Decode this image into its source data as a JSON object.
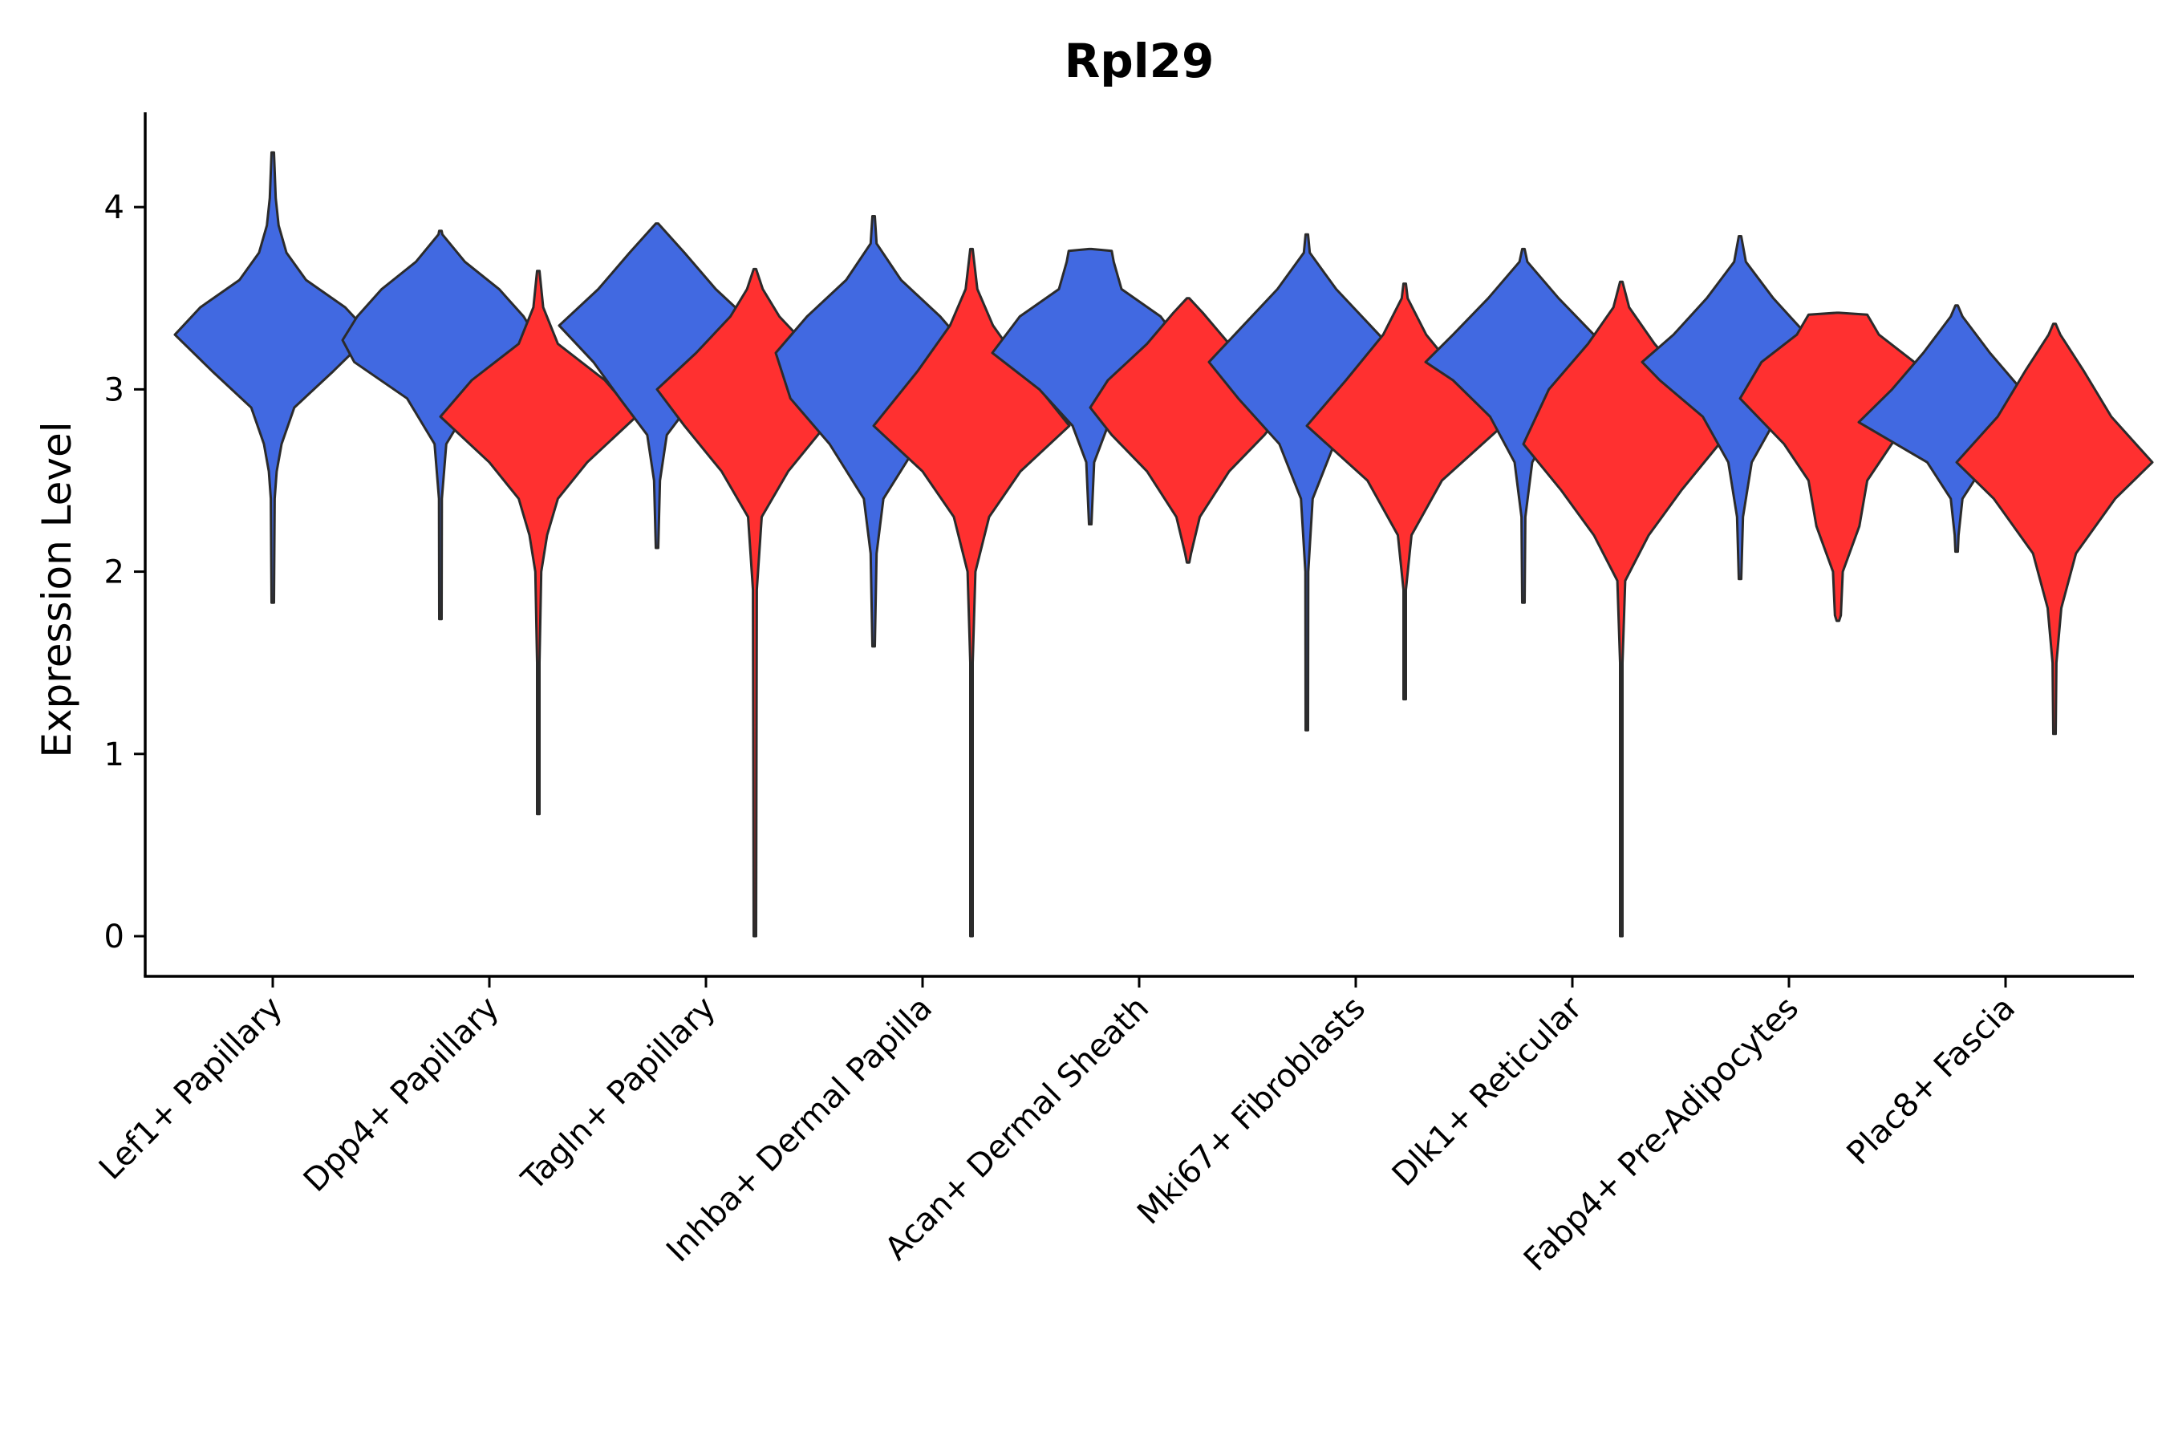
{
  "chart_data": {
    "type": "violin",
    "title": "Rpl29",
    "xlabel": "",
    "ylabel": "Expression Level",
    "ylim": [
      -0.22,
      4.52
    ],
    "yticks": [
      0,
      1,
      2,
      3,
      4
    ],
    "legend": "none",
    "grid": false,
    "colors": {
      "blue": "#4169E1",
      "red": "#FF3030",
      "outline": "#2b2b2b"
    },
    "categories": [
      "Lef1+ Papillary",
      "Dpp4+ Papillary",
      "Tagln+ Papillary",
      "Inhba+ Dermal Papilla",
      "Acan+ Dermal Sheath",
      "Mki67+ Fibroblasts",
      "Dlk1+ Reticular",
      "Fabp4+ Pre-Adipocytes",
      "Plac8+ Fascia"
    ],
    "violins": [
      {
        "category": "Lef1+ Papillary",
        "group": "blue",
        "min": 1.83,
        "max": 4.3,
        "profile": [
          [
            1.83,
            0.0
          ],
          [
            2.4,
            0.02
          ],
          [
            2.55,
            0.04
          ],
          [
            2.7,
            0.09
          ],
          [
            2.9,
            0.22
          ],
          [
            3.1,
            0.62
          ],
          [
            3.3,
            1.0
          ],
          [
            3.45,
            0.74
          ],
          [
            3.6,
            0.34
          ],
          [
            3.75,
            0.14
          ],
          [
            3.9,
            0.06
          ],
          [
            4.05,
            0.03
          ],
          [
            4.3,
            0.0
          ]
        ]
      },
      {
        "category": "Dpp4+ Papillary",
        "group": "blue",
        "min": 1.74,
        "max": 3.87,
        "profile": [
          [
            1.74,
            0.0
          ],
          [
            2.4,
            0.015
          ],
          [
            2.7,
            0.06
          ],
          [
            2.95,
            0.34
          ],
          [
            3.15,
            0.88
          ],
          [
            3.27,
            1.0
          ],
          [
            3.4,
            0.85
          ],
          [
            3.55,
            0.6
          ],
          [
            3.7,
            0.25
          ],
          [
            3.85,
            0.02
          ],
          [
            3.87,
            0.0
          ]
        ]
      },
      {
        "category": "Dpp4+ Papillary",
        "group": "red",
        "min": 0.67,
        "max": 3.65,
        "profile": [
          [
            0.67,
            0.0
          ],
          [
            1.5,
            0.005
          ],
          [
            2.0,
            0.03
          ],
          [
            2.2,
            0.09
          ],
          [
            2.4,
            0.2
          ],
          [
            2.6,
            0.5
          ],
          [
            2.85,
            1.0
          ],
          [
            3.05,
            0.68
          ],
          [
            3.25,
            0.2
          ],
          [
            3.45,
            0.05
          ],
          [
            3.65,
            0.0
          ]
        ]
      },
      {
        "category": "Tagln+ Papillary",
        "group": "blue",
        "min": 2.13,
        "max": 3.91,
        "profile": [
          [
            2.13,
            0.0
          ],
          [
            2.5,
            0.03
          ],
          [
            2.75,
            0.1
          ],
          [
            2.95,
            0.38
          ],
          [
            3.15,
            0.65
          ],
          [
            3.35,
            1.0
          ],
          [
            3.55,
            0.6
          ],
          [
            3.75,
            0.28
          ],
          [
            3.91,
            0.0
          ]
        ]
      },
      {
        "category": "Tagln+ Papillary",
        "group": "red",
        "min": 0.0,
        "max": 3.66,
        "profile": [
          [
            0.0,
            0.0
          ],
          [
            1.9,
            0.02
          ],
          [
            2.3,
            0.07
          ],
          [
            2.55,
            0.34
          ],
          [
            2.8,
            0.72
          ],
          [
            3.0,
            1.0
          ],
          [
            3.2,
            0.6
          ],
          [
            3.4,
            0.25
          ],
          [
            3.55,
            0.08
          ],
          [
            3.66,
            0.0
          ]
        ]
      },
      {
        "category": "Inhba+ Dermal Papilla",
        "group": "blue",
        "min": 1.59,
        "max": 3.95,
        "profile": [
          [
            1.59,
            0.0
          ],
          [
            2.1,
            0.03
          ],
          [
            2.4,
            0.1
          ],
          [
            2.7,
            0.45
          ],
          [
            2.95,
            0.85
          ],
          [
            3.2,
            1.0
          ],
          [
            3.4,
            0.68
          ],
          [
            3.6,
            0.28
          ],
          [
            3.8,
            0.03
          ],
          [
            3.95,
            0.0
          ]
        ]
      },
      {
        "category": "Inhba+ Dermal Papilla",
        "group": "red",
        "min": 0.0,
        "max": 3.77,
        "profile": [
          [
            0.0,
            0.0
          ],
          [
            1.5,
            0.005
          ],
          [
            2.0,
            0.04
          ],
          [
            2.3,
            0.18
          ],
          [
            2.55,
            0.5
          ],
          [
            2.8,
            1.0
          ],
          [
            3.1,
            0.55
          ],
          [
            3.35,
            0.22
          ],
          [
            3.55,
            0.06
          ],
          [
            3.77,
            0.0
          ]
        ]
      },
      {
        "category": "Acan+ Dermal Sheath",
        "group": "blue",
        "min": 2.26,
        "max": 3.77,
        "profile": [
          [
            2.26,
            0.0
          ],
          [
            2.6,
            0.04
          ],
          [
            2.8,
            0.18
          ],
          [
            3.0,
            0.52
          ],
          [
            3.2,
            1.0
          ],
          [
            3.4,
            0.72
          ],
          [
            3.55,
            0.32
          ],
          [
            3.7,
            0.24
          ],
          [
            3.76,
            0.22
          ],
          [
            3.77,
            0.0
          ]
        ]
      },
      {
        "category": "Acan+ Dermal Sheath",
        "group": "red",
        "min": 2.05,
        "max": 3.5,
        "profile": [
          [
            2.05,
            0.0
          ],
          [
            2.1,
            0.03
          ],
          [
            2.3,
            0.12
          ],
          [
            2.55,
            0.42
          ],
          [
            2.75,
            0.78
          ],
          [
            2.9,
            1.0
          ],
          [
            3.05,
            0.82
          ],
          [
            3.25,
            0.42
          ],
          [
            3.42,
            0.15
          ],
          [
            3.5,
            0.0
          ]
        ]
      },
      {
        "category": "Mki67+ Fibroblasts",
        "group": "blue",
        "min": 1.13,
        "max": 3.85,
        "profile": [
          [
            1.13,
            0.0
          ],
          [
            2.0,
            0.015
          ],
          [
            2.4,
            0.06
          ],
          [
            2.7,
            0.28
          ],
          [
            2.95,
            0.7
          ],
          [
            3.15,
            1.0
          ],
          [
            3.35,
            0.65
          ],
          [
            3.55,
            0.3
          ],
          [
            3.75,
            0.03
          ],
          [
            3.85,
            0.0
          ]
        ]
      },
      {
        "category": "Mki67+ Fibroblasts",
        "group": "red",
        "min": 1.3,
        "max": 3.58,
        "profile": [
          [
            1.3,
            0.0
          ],
          [
            1.9,
            0.01
          ],
          [
            2.2,
            0.07
          ],
          [
            2.5,
            0.38
          ],
          [
            2.8,
            1.0
          ],
          [
            3.05,
            0.6
          ],
          [
            3.3,
            0.22
          ],
          [
            3.5,
            0.03
          ],
          [
            3.58,
            0.0
          ]
        ]
      },
      {
        "category": "Dlk1+ Reticular",
        "group": "blue",
        "min": 1.83,
        "max": 3.77,
        "profile": [
          [
            1.83,
            0.0
          ],
          [
            2.3,
            0.02
          ],
          [
            2.6,
            0.09
          ],
          [
            2.85,
            0.34
          ],
          [
            3.05,
            0.72
          ],
          [
            3.15,
            1.0
          ],
          [
            3.3,
            0.72
          ],
          [
            3.5,
            0.36
          ],
          [
            3.7,
            0.04
          ],
          [
            3.77,
            0.0
          ]
        ]
      },
      {
        "category": "Dlk1+ Reticular",
        "group": "red",
        "min": 0.0,
        "max": 3.59,
        "profile": [
          [
            0.0,
            0.0
          ],
          [
            1.5,
            0.01
          ],
          [
            1.95,
            0.04
          ],
          [
            2.2,
            0.28
          ],
          [
            2.45,
            0.62
          ],
          [
            2.7,
            1.0
          ],
          [
            3.0,
            0.74
          ],
          [
            3.25,
            0.34
          ],
          [
            3.45,
            0.08
          ],
          [
            3.59,
            0.0
          ]
        ]
      },
      {
        "category": "Fabp4+ Pre-Adipocytes",
        "group": "blue",
        "min": 1.96,
        "max": 3.84,
        "profile": [
          [
            1.96,
            0.0
          ],
          [
            2.3,
            0.03
          ],
          [
            2.6,
            0.12
          ],
          [
            2.85,
            0.38
          ],
          [
            3.05,
            0.82
          ],
          [
            3.15,
            1.0
          ],
          [
            3.3,
            0.68
          ],
          [
            3.5,
            0.34
          ],
          [
            3.7,
            0.06
          ],
          [
            3.84,
            0.0
          ]
        ]
      },
      {
        "category": "Fabp4+ Pre-Adipocytes",
        "group": "red",
        "min": 1.73,
        "max": 3.42,
        "profile": [
          [
            1.73,
            0.0
          ],
          [
            1.76,
            0.03
          ],
          [
            2.0,
            0.05
          ],
          [
            2.25,
            0.22
          ],
          [
            2.5,
            0.3
          ],
          [
            2.7,
            0.55
          ],
          [
            2.95,
            1.0
          ],
          [
            3.15,
            0.78
          ],
          [
            3.3,
            0.42
          ],
          [
            3.41,
            0.3
          ],
          [
            3.42,
            0.0
          ]
        ]
      },
      {
        "category": "Plac8+ Fascia",
        "group": "blue",
        "min": 2.11,
        "max": 3.46,
        "profile": [
          [
            2.11,
            0.0
          ],
          [
            2.2,
            0.02
          ],
          [
            2.4,
            0.06
          ],
          [
            2.6,
            0.3
          ],
          [
            2.82,
            1.0
          ],
          [
            3.0,
            0.66
          ],
          [
            3.2,
            0.34
          ],
          [
            3.4,
            0.06
          ],
          [
            3.46,
            0.0
          ]
        ]
      },
      {
        "category": "Plac8+ Fascia",
        "group": "red",
        "min": 1.11,
        "max": 3.36,
        "profile": [
          [
            1.11,
            0.0
          ],
          [
            1.5,
            0.02
          ],
          [
            1.8,
            0.07
          ],
          [
            2.1,
            0.22
          ],
          [
            2.4,
            0.62
          ],
          [
            2.6,
            1.0
          ],
          [
            2.85,
            0.58
          ],
          [
            3.1,
            0.3
          ],
          [
            3.3,
            0.06
          ],
          [
            3.36,
            0.0
          ]
        ]
      }
    ]
  }
}
